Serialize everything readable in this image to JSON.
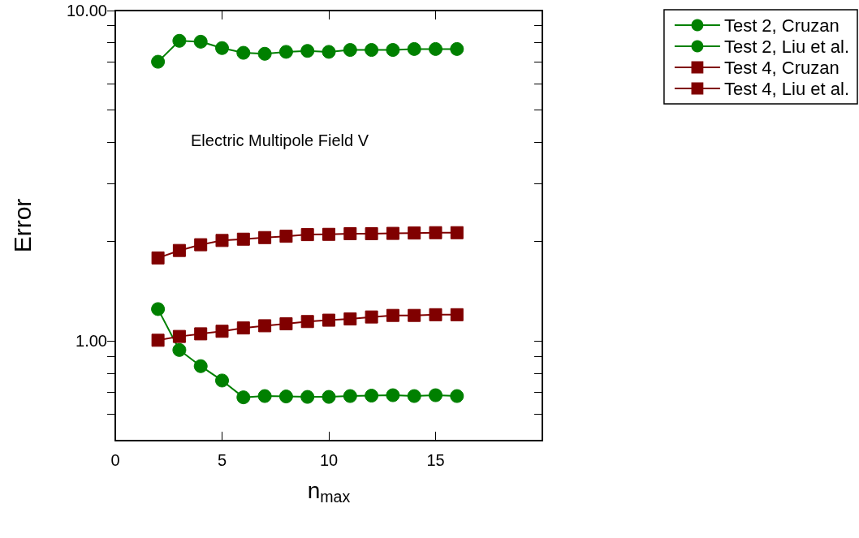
{
  "chart_data": {
    "type": "line",
    "xlabel": "n$_{max}$",
    "ylabel": "Error",
    "annotations": [
      "Electric Multipole Field V"
    ],
    "x": [
      2,
      3,
      4,
      5,
      6,
      7,
      8,
      9,
      10,
      11,
      12,
      13,
      14,
      15,
      16
    ],
    "series": [
      {
        "name": "Test 2, Cruzan",
        "color": "#008000",
        "marker": "circle",
        "values": [
          1.25,
          0.94,
          0.84,
          0.76,
          0.676,
          0.682,
          0.68,
          0.678,
          0.678,
          0.682,
          0.684,
          0.686,
          0.682,
          0.686,
          0.682
        ]
      },
      {
        "name": "Test 2, Liu et al.",
        "color": "#008000",
        "marker": "circle",
        "values": [
          7.0,
          8.1,
          8.05,
          7.7,
          7.45,
          7.4,
          7.5,
          7.55,
          7.5,
          7.6,
          7.6,
          7.6,
          7.65,
          7.65,
          7.65
        ]
      },
      {
        "name": "Test 4, Cruzan",
        "color": "#800000",
        "marker": "square",
        "values": [
          1.006,
          1.033,
          1.052,
          1.071,
          1.096,
          1.113,
          1.128,
          1.146,
          1.157,
          1.167,
          1.183,
          1.196,
          1.196,
          1.202,
          1.202
        ]
      },
      {
        "name": "Test 4, Liu et al.",
        "color": "#800000",
        "marker": "square",
        "values": [
          1.785,
          1.88,
          1.957,
          2.016,
          2.034,
          2.057,
          2.076,
          2.1,
          2.104,
          2.113,
          2.113,
          2.118,
          2.123,
          2.128,
          2.128
        ]
      }
    ],
    "xlim": [
      0,
      20
    ],
    "xticks": [
      0,
      5,
      10,
      15
    ],
    "ylim": [
      0.5,
      10
    ],
    "log": true,
    "yticks": [
      {
        "value": 0.6,
        "label": null
      },
      {
        "value": 0.7,
        "label": null
      },
      {
        "value": 0.8,
        "label": null
      },
      {
        "value": 0.9,
        "label": null
      },
      {
        "value": 1,
        "label": "1.00"
      },
      {
        "value": 2,
        "label": null
      },
      {
        "value": 3,
        "label": null
      },
      {
        "value": 4,
        "label": null
      },
      {
        "value": 5,
        "label": null
      },
      {
        "value": 6,
        "label": null
      },
      {
        "value": 7,
        "label": null
      },
      {
        "value": 8,
        "label": null
      },
      {
        "value": 9,
        "label": null
      },
      {
        "value": 10,
        "label": "10.00"
      }
    ],
    "grid": false,
    "legend": "top right"
  }
}
